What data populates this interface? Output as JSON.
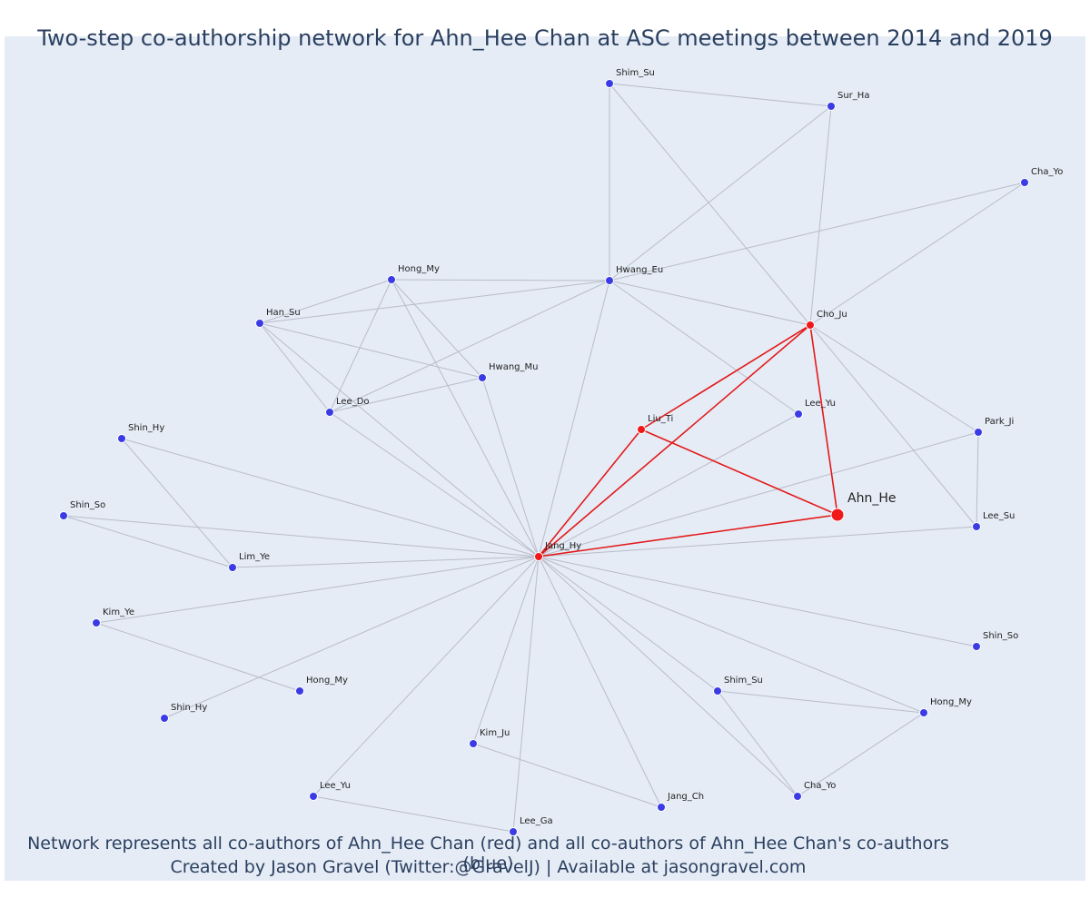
{
  "title": "Two-step co-authorship network for Ahn_Hee Chan at ASC meetings between 2014 and 2019",
  "footer": {
    "line1": "Network represents all co-authors of Ahn_Hee Chan (red) and all co-authors of Ahn_Hee Chan's co-authors (blue)",
    "line2": "Created by Jason Gravel (Twitter:@GravelJ) | Available at jasongravel.com"
  },
  "colors": {
    "background": "#e5ecf6",
    "red": "#f01818",
    "blue": "#3b3be6",
    "edge_gray": "#b9bcc9",
    "edge_red": "#e31a1a"
  },
  "nodes": [
    {
      "id": "n0",
      "label": "Ahn_He",
      "group": "ego"
    },
    {
      "id": "n1",
      "label": "Jang_Hy",
      "group": "red"
    },
    {
      "id": "n2",
      "label": "Cho_Ju",
      "group": "red"
    },
    {
      "id": "n3",
      "label": "Liu_Ti",
      "group": "red"
    },
    {
      "id": "n4",
      "label": "Shim_Su",
      "group": "blue"
    },
    {
      "id": "n5",
      "label": "Sur_Ha",
      "group": "blue"
    },
    {
      "id": "n6",
      "label": "Cha_Yo",
      "group": "blue"
    },
    {
      "id": "n7",
      "label": "Hwang_Eu",
      "group": "blue"
    },
    {
      "id": "n8",
      "label": "Hong_My",
      "group": "blue"
    },
    {
      "id": "n9",
      "label": "Han_Su",
      "group": "blue"
    },
    {
      "id": "n10",
      "label": "Hwang_Mu",
      "group": "blue"
    },
    {
      "id": "n11",
      "label": "Lee_Do",
      "group": "blue"
    },
    {
      "id": "n12",
      "label": "Lee_Yu",
      "group": "blue"
    },
    {
      "id": "n13",
      "label": "Park_Ji",
      "group": "blue"
    },
    {
      "id": "n14",
      "label": "Lee_Su",
      "group": "blue"
    },
    {
      "id": "n15",
      "label": "Shin_Hy",
      "group": "blue"
    },
    {
      "id": "n16",
      "label": "Shin_So",
      "group": "blue"
    },
    {
      "id": "n17",
      "label": "Lim_Ye",
      "group": "blue"
    },
    {
      "id": "n18",
      "label": "Kim_Ye",
      "group": "blue"
    },
    {
      "id": "n19",
      "label": "Hong_My",
      "group": "blue"
    },
    {
      "id": "n20",
      "label": "Shin_Hy",
      "group": "blue"
    },
    {
      "id": "n21",
      "label": "Shin_So",
      "group": "blue"
    },
    {
      "id": "n22",
      "label": "Shim_Su",
      "group": "blue"
    },
    {
      "id": "n23",
      "label": "Hong_My",
      "group": "blue"
    },
    {
      "id": "n24",
      "label": "Kim_Ju",
      "group": "blue"
    },
    {
      "id": "n25",
      "label": "Lee_Yu",
      "group": "blue"
    },
    {
      "id": "n26",
      "label": "Jang_Ch",
      "group": "blue"
    },
    {
      "id": "n27",
      "label": "Cha_Yo",
      "group": "blue"
    },
    {
      "id": "n28",
      "label": "Lee_Ga",
      "group": "blue"
    }
  ],
  "edges": [
    [
      "n0",
      "n1"
    ],
    [
      "n0",
      "n2"
    ],
    [
      "n0",
      "n3"
    ],
    [
      "n1",
      "n2"
    ],
    [
      "n1",
      "n3"
    ],
    [
      "n2",
      "n3"
    ],
    [
      "n4",
      "n5"
    ],
    [
      "n4",
      "n7"
    ],
    [
      "n4",
      "n2"
    ],
    [
      "n5",
      "n7"
    ],
    [
      "n5",
      "n2"
    ],
    [
      "n6",
      "n7"
    ],
    [
      "n6",
      "n2"
    ],
    [
      "n7",
      "n8"
    ],
    [
      "n7",
      "n9"
    ],
    [
      "n7",
      "n11"
    ],
    [
      "n7",
      "n12"
    ],
    [
      "n7",
      "n2"
    ],
    [
      "n7",
      "n1"
    ],
    [
      "n8",
      "n9"
    ],
    [
      "n8",
      "n11"
    ],
    [
      "n8",
      "n10"
    ],
    [
      "n8",
      "n1"
    ],
    [
      "n9",
      "n10"
    ],
    [
      "n9",
      "n11"
    ],
    [
      "n9",
      "n1"
    ],
    [
      "n10",
      "n11"
    ],
    [
      "n10",
      "n1"
    ],
    [
      "n11",
      "n1"
    ],
    [
      "n12",
      "n1"
    ],
    [
      "n13",
      "n2"
    ],
    [
      "n13",
      "n14"
    ],
    [
      "n13",
      "n1"
    ],
    [
      "n14",
      "n2"
    ],
    [
      "n14",
      "n1"
    ],
    [
      "n15",
      "n17"
    ],
    [
      "n15",
      "n1"
    ],
    [
      "n16",
      "n17"
    ],
    [
      "n16",
      "n1"
    ],
    [
      "n17",
      "n1"
    ],
    [
      "n18",
      "n19"
    ],
    [
      "n18",
      "n1"
    ],
    [
      "n20",
      "n1"
    ],
    [
      "n21",
      "n1"
    ],
    [
      "n22",
      "n23"
    ],
    [
      "n22",
      "n27"
    ],
    [
      "n22",
      "n1"
    ],
    [
      "n23",
      "n27"
    ],
    [
      "n23",
      "n1"
    ],
    [
      "n24",
      "n26"
    ],
    [
      "n24",
      "n1"
    ],
    [
      "n25",
      "n28"
    ],
    [
      "n25",
      "n1"
    ],
    [
      "n26",
      "n1"
    ],
    [
      "n27",
      "n1"
    ],
    [
      "n28",
      "n1"
    ]
  ]
}
